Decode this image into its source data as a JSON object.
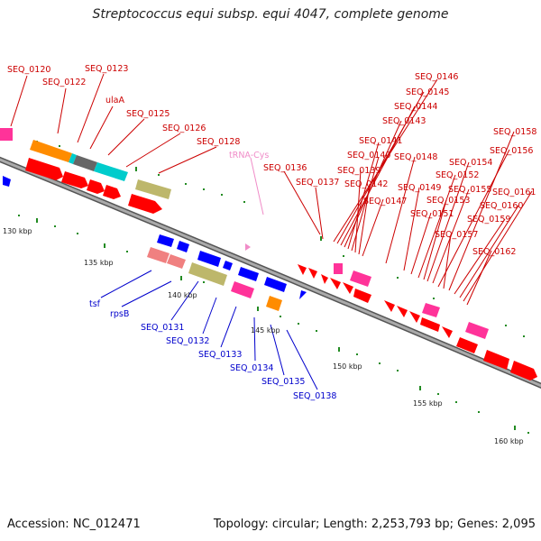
{
  "header": {
    "title": "Streptococcus equi subsp. equi 4047, complete genome"
  },
  "footer": {
    "accession": "Accession: NC_012471",
    "summary": "Topology: circular; Length: 2,253,793 bp; Genes: 2,095"
  },
  "kbp_labels": [
    "130 kbp",
    "135 kbp",
    "140 kbp",
    "145 kbp",
    "150 kbp",
    "155 kbp",
    "160 kbp"
  ],
  "top_strand_labels": [
    "SEQ_0120",
    "SEQ_0122",
    "SEQ_0123",
    "ulaA",
    "SEQ_0125",
    "SEQ_0126",
    "SEQ_0128",
    "SEQ_0136",
    "SEQ_0137",
    "SEQ_0139",
    "SEQ_0140",
    "SEQ_0141",
    "SEQ_0142",
    "SEQ_0143",
    "SEQ_0144",
    "SEQ_0145",
    "SEQ_0146",
    "SEQ_0147",
    "SEQ_0148",
    "SEQ_0149",
    "SEQ_0151",
    "SEQ_0152",
    "SEQ_0153",
    "SEQ_0154",
    "SEQ_0155",
    "SEQ_0156",
    "SEQ_0157",
    "SEQ_0158",
    "SEQ_0159",
    "SEQ_0160",
    "SEQ_0161",
    "SEQ_0162"
  ],
  "trna_label": "tRNA-Cys",
  "bottom_strand_labels": [
    "tsf",
    "rpsB",
    "SEQ_0131",
    "SEQ_0132",
    "SEQ_0133",
    "SEQ_0134",
    "SEQ_0135",
    "SEQ_0138"
  ],
  "colors": {
    "forward": "#ff0000",
    "reverse": "#0000ff",
    "cog_magenta": "#ff3399",
    "cog_orange": "#ff8c00",
    "cog_grey": "#666666",
    "cog_cyan": "#00cccc",
    "cog_olive": "#bdb76b",
    "cog_salmon": "#f08080",
    "backbone": "#888888",
    "tick": "#228b22"
  }
}
